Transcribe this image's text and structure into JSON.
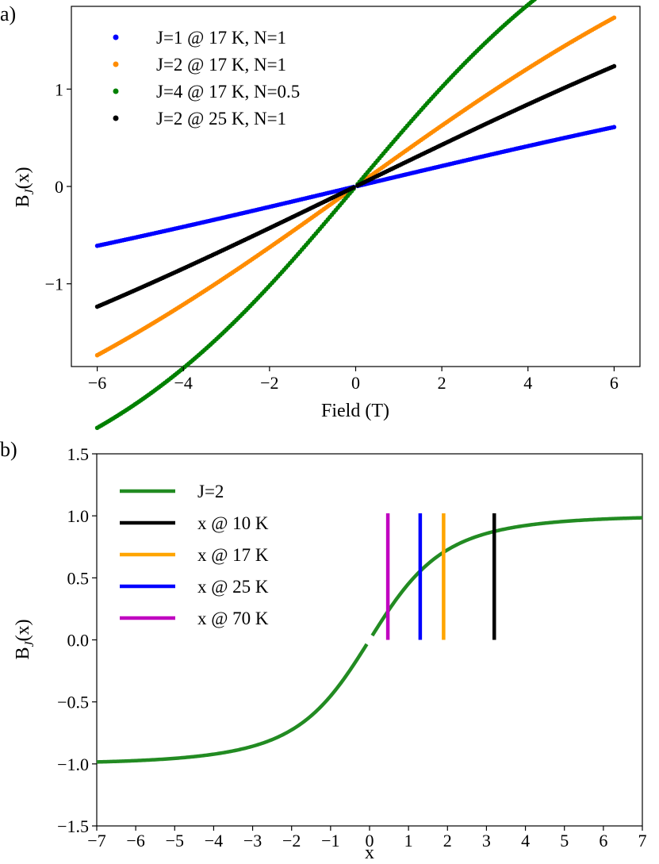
{
  "chart_data": [
    {
      "panel_label": "a)",
      "type": "scatter",
      "xlabel": "Field (T)",
      "ylabel": "B",
      "ylabel_sub": "J",
      "ylabel_tail": "(x)",
      "xlim": [
        -6.6,
        6.6
      ],
      "ylim": [
        -1.85,
        1.85
      ],
      "xticks": [
        -6,
        -4,
        -2,
        0,
        2,
        4,
        6
      ],
      "xtick_labels": [
        "−6",
        "−4",
        "−2",
        "0",
        "2",
        "4",
        "6"
      ],
      "yticks": [
        -1,
        0,
        1
      ],
      "ytick_labels": [
        "−1",
        "0",
        "1"
      ],
      "legend_position": "top-left",
      "series": [
        {
          "name": "J=1 @ 17 K, N=1",
          "color": "#0000ff",
          "J": 1,
          "T": 17,
          "N": 1
        },
        {
          "name": "J=2 @ 17 K, N=1",
          "color": "#ff8c00",
          "J": 2,
          "T": 17,
          "N": 1
        },
        {
          "name": "J=4 @ 17 K, N=0.5",
          "color": "#008000",
          "J": 4,
          "T": 17,
          "N": 0.5
        },
        {
          "name": "J=2 @ 25 K, N=1",
          "color": "#000000",
          "J": 2,
          "T": 25,
          "N": 1
        }
      ],
      "x_range": [
        -6,
        6
      ]
    },
    {
      "panel_label": "b)",
      "type": "line",
      "xlabel": "x",
      "ylabel": "B",
      "ylabel_sub": "J",
      "ylabel_tail": "(x)",
      "xlim": [
        -7,
        7
      ],
      "ylim": [
        -1.5,
        1.5
      ],
      "xticks": [
        -7,
        -6,
        -5,
        -4,
        -3,
        -2,
        -1,
        0,
        1,
        2,
        3,
        4,
        5,
        6,
        7
      ],
      "xtick_labels": [
        "−7",
        "−6",
        "−5",
        "−4",
        "−3",
        "−2",
        "−1",
        "0",
        "1",
        "2",
        "3",
        "4",
        "5",
        "6",
        "7"
      ],
      "yticks": [
        -1.5,
        -1.0,
        -0.5,
        0.0,
        0.5,
        1.0,
        1.5
      ],
      "ytick_labels": [
        "−1.5",
        "−1.0",
        "−0.5",
        "0.0",
        "0.5",
        "1.0",
        "1.5"
      ],
      "legend_position": "top-left",
      "curve": {
        "name": "J=2",
        "color": "#228b22",
        "J": 2,
        "x_range": [
          -7,
          7
        ]
      },
      "markers": [
        {
          "name": "x @ 10 K",
          "color": "#000000",
          "x": 3.2,
          "y0": 0.0,
          "y1": 1.02
        },
        {
          "name": "x @ 17 K",
          "color": "#ffa500",
          "x": 1.9,
          "y0": 0.0,
          "y1": 1.02
        },
        {
          "name": "x @ 25 K",
          "color": "#0000ff",
          "x": 1.3,
          "y0": 0.0,
          "y1": 1.02
        },
        {
          "name": "x @ 70 K",
          "color": "#c000c0",
          "x": 0.47,
          "y0": 0.0,
          "y1": 1.02
        }
      ]
    }
  ]
}
